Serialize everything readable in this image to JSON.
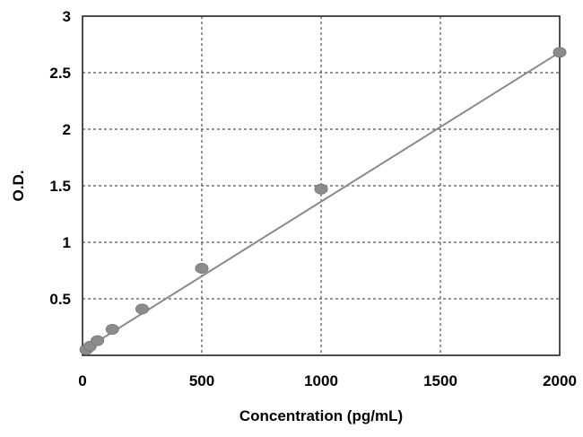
{
  "chart_data": {
    "type": "scatter",
    "title": "",
    "xlabel": "Concentration (pg/mL)",
    "ylabel": "O.D.",
    "xlim": [
      0,
      2000
    ],
    "ylim": [
      0,
      3
    ],
    "xticks": [
      "0",
      "500",
      "1000",
      "1500",
      "2000"
    ],
    "yticks": [
      "0.5",
      "1",
      "1.5",
      "2",
      "2.5",
      "3"
    ],
    "grid": true,
    "legend": "none",
    "colors": {
      "points": "#8c8c8c",
      "line": "#8a8a8a",
      "grid": "#555555"
    },
    "series": [
      {
        "x": [
          15.6,
          31.25,
          62.5,
          125,
          250,
          500,
          1000,
          2000
        ],
        "y": [
          0.05,
          0.08,
          0.13,
          0.23,
          0.41,
          0.77,
          1.47,
          2.68
        ]
      }
    ],
    "fit_line": {
      "x": [
        0,
        2000
      ],
      "y": [
        0.04,
        2.68
      ]
    }
  }
}
